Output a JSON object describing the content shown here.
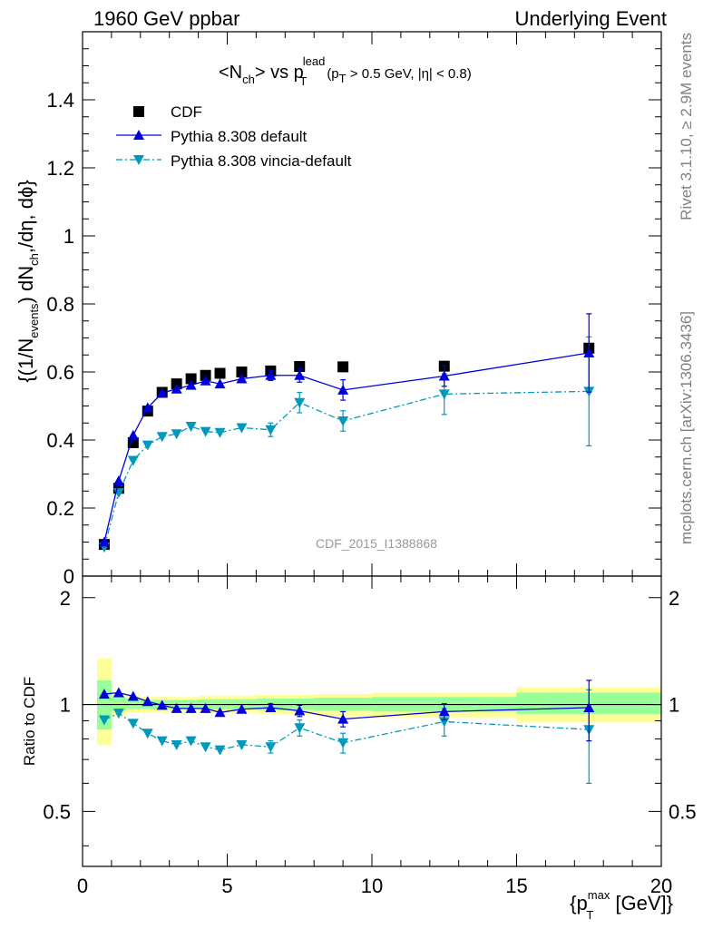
{
  "header": {
    "left": "1960 GeV ppbar",
    "right": "Underlying Event"
  },
  "side": {
    "top": "Rivet 3.1.10, ≥ 2.9M events",
    "bottom": "mcplots.cern.ch [arXiv:1306.3436]"
  },
  "watermark": "CDF_2015_I1388868",
  "plot_title": {
    "main_a": "<N",
    "main_sub": "ch",
    "main_b": "> vs p",
    "main_sup": "lead",
    "main_sub2": "T",
    "cond_a": "(p",
    "cond_sub": "T",
    "cond_b": " > 0.5 GeV, |η| < 0.8)"
  },
  "y_label": {
    "a": "{(1/N",
    "sub1": "events",
    "b": ") dN",
    "sub2": "ch",
    "c": ",/dη, dϕ}"
  },
  "ratio_label": "Ratio to CDF",
  "x_label": {
    "a": "{p",
    "sup": "max",
    "sub": "T",
    "b": " [GeV]}"
  },
  "chart_data": [
    {
      "type": "scatter",
      "title": "<Nch> vs pT lead (pT > 0.5 GeV, |η| < 0.8)",
      "xlabel": "{pT max [GeV]}",
      "ylabel": "{(1/Nevents) dNch,/dη, dϕ}",
      "xlim": [
        0,
        20
      ],
      "ylim": [
        0,
        1.6
      ],
      "x_ticks": [
        "0",
        "5",
        "10",
        "15",
        "20"
      ],
      "y_ticks": [
        "0",
        "0.2",
        "0.4",
        "0.6",
        "0.8",
        "1",
        "1.2",
        "1.4"
      ],
      "legend_position": "top-left",
      "series": [
        {
          "name": "CDF",
          "style": "black squares",
          "color": "#000000",
          "x": [
            0.75,
            1.25,
            1.75,
            2.25,
            2.75,
            3.25,
            3.75,
            4.25,
            4.75,
            5.5,
            6.5,
            7.5,
            9.0,
            12.5,
            17.5
          ],
          "y": [
            0.093,
            0.258,
            0.392,
            0.485,
            0.54,
            0.565,
            0.58,
            0.59,
            0.596,
            0.6,
            0.603,
            0.616,
            0.615,
            0.617,
            0.67
          ]
        },
        {
          "name": "Pythia 8.308 default",
          "style": "solid line, up triangles",
          "color": "#0000dd",
          "x": [
            0.75,
            1.25,
            1.75,
            2.25,
            2.75,
            3.25,
            3.75,
            4.25,
            4.75,
            5.5,
            6.5,
            7.5,
            9.0,
            12.5,
            17.5
          ],
          "y": [
            0.1,
            0.28,
            0.414,
            0.495,
            0.538,
            0.55,
            0.561,
            0.574,
            0.565,
            0.58,
            0.59,
            0.59,
            0.547,
            0.588,
            0.656
          ],
          "yerr": [
            0,
            0,
            0,
            0,
            0,
            0,
            0,
            0,
            0,
            0,
            0.015,
            0.02,
            0.03,
            0.03,
            0.115
          ]
        },
        {
          "name": "Pythia 8.308 vincia-default",
          "style": "dash-dot line, down triangles",
          "color": "#0099bb",
          "x": [
            0.75,
            1.25,
            1.75,
            2.25,
            2.75,
            3.25,
            3.75,
            4.25,
            4.75,
            5.5,
            6.5,
            7.5,
            9.0,
            12.5,
            17.5
          ],
          "y": [
            0.085,
            0.245,
            0.34,
            0.385,
            0.41,
            0.418,
            0.44,
            0.425,
            0.422,
            0.436,
            0.43,
            0.51,
            0.456,
            0.535,
            0.543
          ],
          "yerr": [
            0,
            0,
            0,
            0,
            0,
            0,
            0,
            0,
            0,
            0,
            0.02,
            0.03,
            0.03,
            0.06,
            0.16
          ]
        }
      ]
    },
    {
      "type": "scatter",
      "title": "",
      "xlabel": "{pT max [GeV]}",
      "ylabel": "Ratio to CDF",
      "xlim": [
        0,
        20
      ],
      "ylim": [
        0.35,
        2.3
      ],
      "y_scale": "log",
      "y_ticks": [
        "0.5",
        "1",
        "2"
      ],
      "reference_line": 1,
      "bands": {
        "inner_color": "#99ff99",
        "outer_color": "#ffff99",
        "bins": [
          {
            "x0": 0.5,
            "x1": 1.0,
            "inner": [
              0.85,
              1.17
            ],
            "outer": [
              0.77,
              1.35
            ]
          },
          {
            "x0": 1.0,
            "x1": 1.5,
            "inner": [
              0.96,
              1.05
            ],
            "outer": [
              0.93,
              1.08
            ]
          },
          {
            "x0": 1.5,
            "x1": 2.0,
            "inner": [
              0.97,
              1.04
            ],
            "outer": [
              0.95,
              1.06
            ]
          },
          {
            "x0": 2.0,
            "x1": 3.0,
            "inner": [
              0.97,
              1.03
            ],
            "outer": [
              0.95,
              1.05
            ]
          },
          {
            "x0": 3.0,
            "x1": 4.0,
            "inner": [
              0.975,
              1.03
            ],
            "outer": [
              0.955,
              1.05
            ]
          },
          {
            "x0": 4.0,
            "x1": 6.0,
            "inner": [
              0.97,
              1.035
            ],
            "outer": [
              0.95,
              1.06
            ]
          },
          {
            "x0": 6.0,
            "x1": 8.0,
            "inner": [
              0.965,
              1.04
            ],
            "outer": [
              0.94,
              1.065
            ]
          },
          {
            "x0": 8.0,
            "x1": 10.0,
            "inner": [
              0.96,
              1.045
            ],
            "outer": [
              0.93,
              1.07
            ]
          },
          {
            "x0": 10.0,
            "x1": 15.0,
            "inner": [
              0.955,
              1.05
            ],
            "outer": [
              0.92,
              1.08
            ]
          },
          {
            "x0": 15.0,
            "x1": 20.0,
            "inner": [
              0.94,
              1.08
            ],
            "outer": [
              0.89,
              1.12
            ]
          }
        ]
      },
      "series": [
        {
          "name": "Pythia 8.308 default",
          "color": "#0000dd",
          "x": [
            0.75,
            1.25,
            1.75,
            2.25,
            2.75,
            3.25,
            3.75,
            4.25,
            4.75,
            5.5,
            6.5,
            7.5,
            9.0,
            12.5,
            17.5
          ],
          "y": [
            1.07,
            1.08,
            1.055,
            1.02,
            0.995,
            0.975,
            0.975,
            0.975,
            0.95,
            0.97,
            0.98,
            0.96,
            0.91,
            0.955,
            0.98
          ],
          "yerr": [
            0,
            0,
            0,
            0,
            0,
            0,
            0,
            0,
            0,
            0,
            0.025,
            0.035,
            0.045,
            0.05,
            0.19
          ]
        },
        {
          "name": "Pythia 8.308 vincia-default",
          "color": "#0099bb",
          "x": [
            0.75,
            1.25,
            1.75,
            2.25,
            2.75,
            3.25,
            3.75,
            4.25,
            4.75,
            5.5,
            6.5,
            7.5,
            9.0,
            12.5,
            17.5
          ],
          "y": [
            0.905,
            0.945,
            0.885,
            0.83,
            0.79,
            0.77,
            0.79,
            0.76,
            0.745,
            0.77,
            0.76,
            0.86,
            0.78,
            0.895,
            0.85
          ],
          "yerr": [
            0,
            0,
            0,
            0,
            0,
            0,
            0,
            0,
            0,
            0,
            0.03,
            0.045,
            0.05,
            0.08,
            0.25
          ]
        }
      ]
    }
  ]
}
